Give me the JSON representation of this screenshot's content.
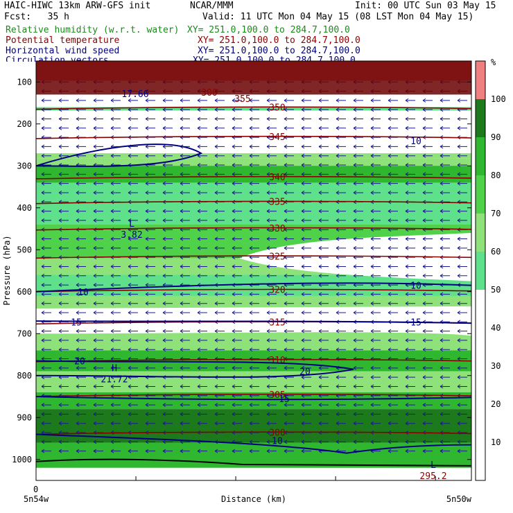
{
  "header": {
    "title_left": "HAIC-HIWC 13km ARW-GFS init",
    "org": "NCAR/MMM",
    "init": "Init: 00 UTC Sun 03 May 15",
    "fcst": "Fcst:   35 h",
    "valid": "Valid: 11 UTC Mon 04 May 15 (08 LST Mon 04 May 15)",
    "fields": [
      {
        "label": "Relative humidity (w.r.t. water)",
        "xy": "XY= 251.0,100.0 to 284.7,100.0",
        "color": "#1a8a1a"
      },
      {
        "label": "Potential temperature",
        "xy": "XY= 251.0,100.0 to 284.7,100.0",
        "color": "#8b0000"
      },
      {
        "label": "Horizontal wind speed",
        "xy": "XY= 251.0,100.0 to 284.7,100.0",
        "color": "#00007a"
      },
      {
        "label": "Circulation vectors",
        "xy": "XY= 251.0,100.0 to 284.7,100.0",
        "color": "#00007a"
      }
    ]
  },
  "chart_data": {
    "type": "heatmap",
    "xlabel": "Distance (km)",
    "ylabel": "Pressure (hPa)",
    "x_tick_labels": {
      "origin": "0",
      "left": "5n54w",
      "right": "5n50w"
    },
    "y_ticks": [
      100,
      200,
      300,
      400,
      500,
      600,
      700,
      800,
      900,
      1000
    ],
    "ylim": [
      50,
      1050
    ],
    "colorbar": {
      "unit": "%",
      "ticks": [
        10,
        20,
        30,
        40,
        50,
        60,
        70,
        80,
        90,
        100
      ],
      "bands": [
        {
          "from": 50,
          "to": 60,
          "color": "#5fe08a"
        },
        {
          "from": 60,
          "to": 70,
          "color": "#8fe27a"
        },
        {
          "from": 70,
          "to": 80,
          "color": "#4fd24a"
        },
        {
          "from": 80,
          "to": 90,
          "color": "#2fb82f"
        },
        {
          "from": 90,
          "to": 100,
          "color": "#1c7a1c"
        },
        {
          "from": 100,
          "to": 110,
          "color": "#f08080"
        }
      ]
    },
    "theta_contours": [
      {
        "value": "350",
        "p": 160
      },
      {
        "value": "345",
        "p": 230
      },
      {
        "value": "340",
        "p": 326
      },
      {
        "value": "335",
        "p": 385
      },
      {
        "value": "330",
        "p": 448
      },
      {
        "value": "325",
        "p": 515
      },
      {
        "value": "320",
        "p": 595
      },
      {
        "value": "315",
        "p": 672
      },
      {
        "value": "310",
        "p": 762
      },
      {
        "value": "305",
        "p": 845
      },
      {
        "value": "300",
        "p": 935
      }
    ],
    "speed_labels": [
      "10",
      "15",
      "20"
    ],
    "extrema": [
      {
        "marker": "L",
        "value": "3.82"
      },
      {
        "marker": "H",
        "value": "21.72"
      },
      {
        "marker": "L",
        "value": "295.2"
      }
    ],
    "other_labels": [
      "17.66",
      "300",
      "355"
    ]
  }
}
